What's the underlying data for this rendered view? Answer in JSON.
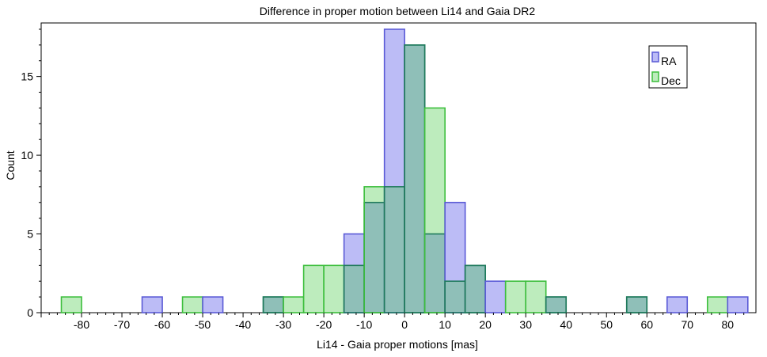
{
  "chart_data": {
    "type": "bar",
    "title": "Difference in proper motion between Li14 and Gaia DR2",
    "xlabel": "Li14 - Gaia proper motions [mas]",
    "ylabel": "Count",
    "xlim": [
      -90,
      87
    ],
    "ylim": [
      0,
      18.4
    ],
    "xticks": [
      -80,
      -70,
      -60,
      -50,
      -40,
      -30,
      -20,
      -10,
      0,
      10,
      20,
      30,
      40,
      50,
      60,
      70,
      80
    ],
    "yticks": [
      0,
      5,
      10,
      15
    ],
    "bin_width": 5,
    "legend_position": "top-right",
    "series": [
      {
        "name": "RA",
        "fill": "#bcbcf6",
        "stroke": "#5a5ad6",
        "bins": [
          {
            "x0": -65,
            "count": 1
          },
          {
            "x0": -50,
            "count": 1
          },
          {
            "x0": -35,
            "count": 1
          },
          {
            "x0": -15,
            "count": 5
          },
          {
            "x0": -10,
            "count": 7
          },
          {
            "x0": -5,
            "count": 18
          },
          {
            "x0": 0,
            "count": 17
          },
          {
            "x0": 5,
            "count": 5
          },
          {
            "x0": 10,
            "count": 7
          },
          {
            "x0": 15,
            "count": 3
          },
          {
            "x0": 20,
            "count": 2
          },
          {
            "x0": 35,
            "count": 1
          },
          {
            "x0": 55,
            "count": 1
          },
          {
            "x0": 65,
            "count": 1
          },
          {
            "x0": 80,
            "count": 1
          }
        ]
      },
      {
        "name": "Dec",
        "fill": "#bdecbd",
        "stroke": "#3cbe3c",
        "bins": [
          {
            "x0": -85,
            "count": 1
          },
          {
            "x0": -55,
            "count": 1
          },
          {
            "x0": -35,
            "count": 1
          },
          {
            "x0": -30,
            "count": 1
          },
          {
            "x0": -25,
            "count": 3
          },
          {
            "x0": -20,
            "count": 3
          },
          {
            "x0": -15,
            "count": 3
          },
          {
            "x0": -10,
            "count": 8
          },
          {
            "x0": -5,
            "count": 8
          },
          {
            "x0": 0,
            "count": 17
          },
          {
            "x0": 5,
            "count": 13
          },
          {
            "x0": 10,
            "count": 2
          },
          {
            "x0": 15,
            "count": 3
          },
          {
            "x0": 25,
            "count": 2
          },
          {
            "x0": 30,
            "count": 2
          },
          {
            "x0": 35,
            "count": 1
          },
          {
            "x0": 55,
            "count": 1
          },
          {
            "x0": 75,
            "count": 1
          }
        ]
      }
    ],
    "overlap_fill": "#8fbfb8",
    "overlap_stroke": "#1f7a5c"
  }
}
